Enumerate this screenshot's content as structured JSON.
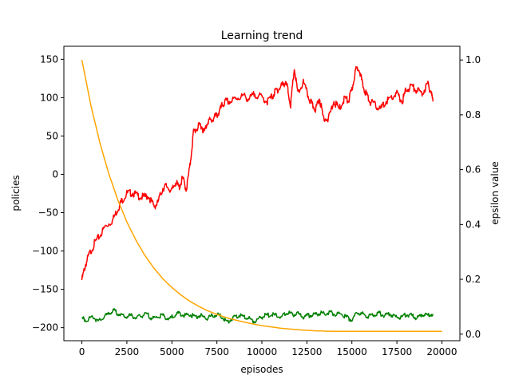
{
  "chart_data": {
    "type": "line",
    "title": "Learning trend",
    "xlabel": "episodes",
    "ylabel": "policies",
    "y2label": "epsilon value",
    "xlim": [
      -1000,
      21000
    ],
    "ylim": [
      -217,
      167
    ],
    "y2lim": [
      -0.024,
      1.05
    ],
    "xticks": [
      0,
      2500,
      5000,
      7500,
      10000,
      12500,
      15000,
      17500,
      20000
    ],
    "yticks": [
      -200,
      -150,
      -100,
      -50,
      0,
      50,
      100,
      150
    ],
    "y2ticks": [
      0.0,
      0.2,
      0.4,
      0.6,
      0.8,
      1.0
    ],
    "xtick_labels": [
      "0",
      "2500",
      "5000",
      "7500",
      "10000",
      "12500",
      "15000",
      "17500",
      "20000"
    ],
    "ytick_labels": [
      "−200",
      "−150",
      "−100",
      "−50",
      "0",
      "50",
      "100",
      "150"
    ],
    "y2tick_labels": [
      "0.0",
      "0.2",
      "0.4",
      "0.6",
      "0.8",
      "1.0"
    ],
    "grid": false,
    "series": [
      {
        "axis": "left",
        "color": "#ff0000",
        "x": [
          0,
          200,
          400,
          700,
          1000,
          1300,
          1700,
          2000,
          2200,
          2500,
          2800,
          3100,
          3400,
          3700,
          4000,
          4200,
          4500,
          4700,
          5000,
          5200,
          5400,
          5600,
          5800,
          6000,
          6200,
          6400,
          6600,
          6800,
          7000,
          7200,
          7400,
          7600,
          7800,
          8000,
          8300,
          8600,
          9000,
          9300,
          9600,
          10000,
          10300,
          10600,
          10800,
          11000,
          11200,
          11400,
          11600,
          11800,
          12000,
          12300,
          12600,
          12800,
          13000,
          13200,
          13400,
          13700,
          14000,
          14300,
          14600,
          14800,
          15000,
          15200,
          15400,
          15600,
          15800,
          16000,
          16300,
          16600,
          16900,
          17200,
          17500,
          17800,
          18000,
          18300,
          18600,
          18900,
          19200,
          19400,
          19500
        ],
        "y": [
          -138,
          -118,
          -105,
          -90,
          -80,
          -68,
          -60,
          -45,
          -35,
          -25,
          -24,
          -28,
          -30,
          -28,
          -42,
          -38,
          -18,
          -15,
          -22,
          -10,
          -17,
          -5,
          -20,
          10,
          55,
          60,
          65,
          55,
          70,
          70,
          75,
          80,
          90,
          95,
          95,
          100,
          102,
          98,
          105,
          100,
          95,
          102,
          110,
          112,
          120,
          115,
          90,
          138,
          105,
          120,
          100,
          90,
          85,
          100,
          75,
          72,
          95,
          85,
          100,
          95,
          110,
          135,
          140,
          115,
          105,
          95,
          90,
          85,
          95,
          100,
          105,
          95,
          110,
          115,
          110,
          105,
          118,
          108,
          95
        ]
      },
      {
        "axis": "left",
        "color": "#008000",
        "x": [
          0,
          300,
          600,
          900,
          1200,
          1500,
          1800,
          2100,
          2400,
          2700,
          3000,
          3300,
          3600,
          3900,
          4200,
          4500,
          4800,
          5100,
          5400,
          5700,
          6000,
          6300,
          6600,
          6900,
          7200,
          7500,
          7800,
          8100,
          8400,
          8700,
          9000,
          9300,
          9600,
          9900,
          10200,
          10500,
          10800,
          11100,
          11400,
          11700,
          12000,
          12300,
          12600,
          12900,
          13200,
          13500,
          13800,
          14100,
          14400,
          14700,
          15000,
          15300,
          15600,
          15900,
          16200,
          16500,
          16800,
          17100,
          17400,
          17700,
          18000,
          18300,
          18600,
          18900,
          19200,
          19500
        ],
        "y": [
          -188,
          -190,
          -185,
          -192,
          -187,
          -181,
          -178,
          -183,
          -186,
          -184,
          -187,
          -185,
          -182,
          -188,
          -186,
          -184,
          -189,
          -185,
          -181,
          -184,
          -183,
          -186,
          -184,
          -188,
          -185,
          -183,
          -186,
          -193,
          -187,
          -184,
          -186,
          -188,
          -192,
          -187,
          -184,
          -183,
          -184,
          -186,
          -180,
          -183,
          -182,
          -186,
          -184,
          -183,
          -181,
          -182,
          -180,
          -183,
          -182,
          -186,
          -190,
          -180,
          -182,
          -185,
          -183,
          -181,
          -184,
          -182,
          -186,
          -187,
          -183,
          -184,
          -188,
          -182,
          -184,
          -182
        ]
      },
      {
        "axis": "right",
        "color": "#ffa500",
        "type": "epsilon-decay",
        "x": [
          0,
          500,
          1000,
          1500,
          2000,
          2500,
          3000,
          3500,
          4000,
          4500,
          5000,
          5500,
          6000,
          6500,
          7000,
          7500,
          8000,
          8500,
          9000,
          9500,
          10000,
          11000,
          12000,
          13000,
          14000,
          15000,
          16000,
          17000,
          18000,
          19000,
          20000
        ],
        "y": [
          1.0,
          0.835,
          0.698,
          0.584,
          0.489,
          0.409,
          0.343,
          0.287,
          0.241,
          0.202,
          0.17,
          0.143,
          0.12,
          0.101,
          0.085,
          0.072,
          0.061,
          0.052,
          0.044,
          0.037,
          0.031,
          0.022,
          0.016,
          0.012,
          0.01,
          0.01,
          0.01,
          0.01,
          0.01,
          0.01,
          0.01
        ]
      }
    ]
  }
}
